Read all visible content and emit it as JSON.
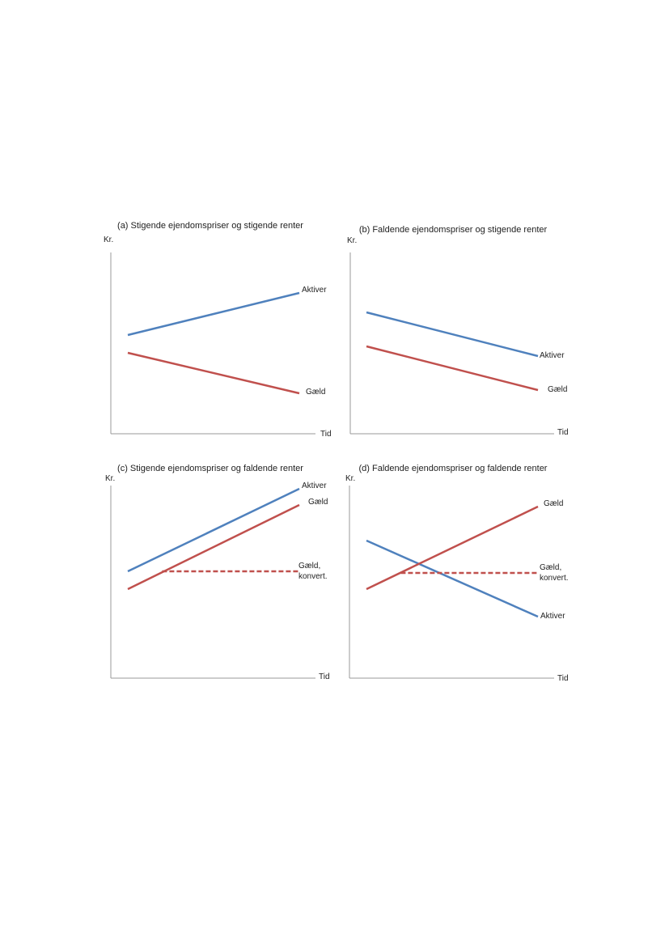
{
  "chart_data": [
    {
      "type": "line",
      "title": "(a) Stigende ejendomspriser og stigende renter",
      "ylabel": "Kr.",
      "xlabel": "Tid",
      "x": [
        0,
        1
      ],
      "ylim": [
        0,
        10
      ],
      "series": [
        {
          "name": "Aktiver",
          "values": [
            5.9,
            8.5
          ],
          "color": "#4f81bd",
          "style": "solid"
        },
        {
          "name": "Gæld",
          "values": [
            4.8,
            2.3
          ],
          "color": "#c0504d",
          "style": "solid"
        }
      ]
    },
    {
      "type": "line",
      "title": "(b) Faldende ejendomspriser og stigende renter",
      "ylabel": "Kr.",
      "xlabel": "Tid",
      "x": [
        0,
        1
      ],
      "ylim": [
        0,
        10
      ],
      "series": [
        {
          "name": "Aktiver",
          "values": [
            7.3,
            4.6
          ],
          "color": "#4f81bd",
          "style": "solid"
        },
        {
          "name": "Gæld",
          "values": [
            5.2,
            2.5
          ],
          "color": "#c0504d",
          "style": "solid"
        }
      ]
    },
    {
      "type": "line",
      "title": "(c)  Stigende ejendomspriser og faldende renter",
      "ylabel": "Kr.",
      "xlabel": "Tid",
      "x": [
        0,
        1
      ],
      "ylim": [
        0,
        10
      ],
      "series": [
        {
          "name": "Aktiver",
          "values": [
            4.9,
            10.0
          ],
          "color": "#4f81bd",
          "style": "solid"
        },
        {
          "name": "Gæld",
          "values": [
            3.8,
            9.0
          ],
          "color": "#c0504d",
          "style": "solid"
        },
        {
          "name": "Gæld,\nkonvert.",
          "x": [
            0.2,
            1
          ],
          "values": [
            4.9,
            4.9
          ],
          "color": "#c0504d",
          "style": "dashed"
        }
      ]
    },
    {
      "type": "line",
      "title": "(d) Faldende ejendomspriser og faldende renter",
      "ylabel": "Kr.",
      "xlabel": "Tid",
      "x": [
        0,
        1
      ],
      "ylim": [
        0,
        10
      ],
      "series": [
        {
          "name": "Aktiver",
          "values": [
            6.8,
            2.1
          ],
          "color": "#4f81bd",
          "style": "solid"
        },
        {
          "name": "Gæld",
          "values": [
            3.8,
            8.9
          ],
          "color": "#c0504d",
          "style": "solid"
        },
        {
          "name": "Gæld,\nkonvert.",
          "x": [
            0.2,
            1
          ],
          "values": [
            4.8,
            4.8
          ],
          "color": "#c0504d",
          "style": "dashed"
        }
      ]
    }
  ]
}
